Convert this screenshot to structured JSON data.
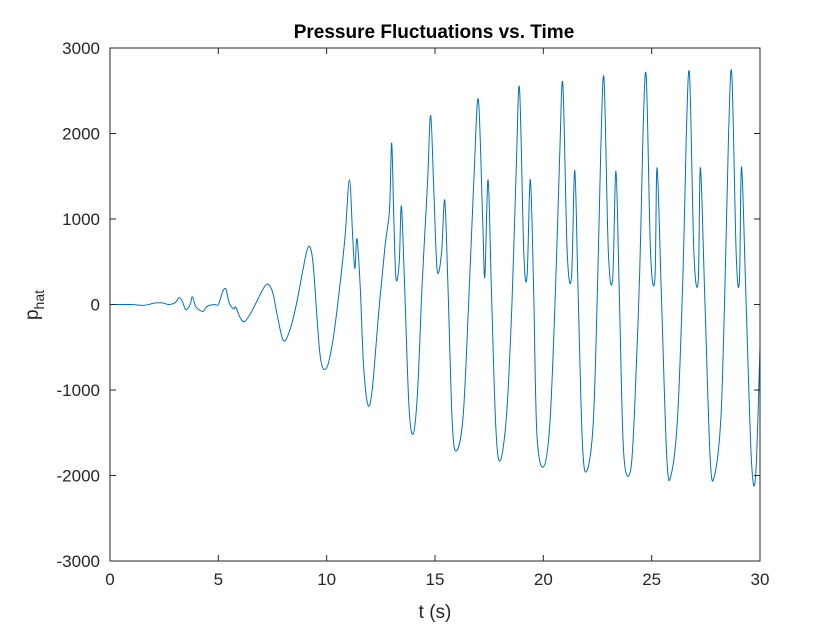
{
  "chart_data": {
    "type": "line",
    "title": "Pressure Fluctuations vs. Time",
    "xlabel": "t (s)",
    "ylabel_main": "p",
    "ylabel_sub": "hat",
    "xlim": [
      0,
      30
    ],
    "ylim": [
      -3000,
      3000
    ],
    "x_ticks": [
      0,
      5,
      10,
      15,
      20,
      25,
      30
    ],
    "x_tick_labels": [
      "0",
      "5",
      "10",
      "15",
      "20",
      "25",
      "30"
    ],
    "y_ticks": [
      -3000,
      -2000,
      -1000,
      0,
      1000,
      2000,
      3000
    ],
    "y_tick_labels": [
      "-3000",
      "-2000",
      "-1000",
      "0",
      "1000",
      "2000",
      "3000"
    ],
    "grid": false,
    "line_color": "#0072bd",
    "series": [
      {
        "x": [
          0,
          0.5,
          1.0,
          1.5,
          1.8,
          2.0,
          2.3,
          2.5,
          2.7,
          3.0,
          3.2,
          3.35,
          3.5,
          3.7,
          3.8,
          3.95,
          4.1,
          4.3,
          4.5,
          4.8,
          5.0,
          5.2,
          5.35,
          5.5,
          5.7,
          5.8,
          6.0,
          6.2,
          6.5,
          6.8,
          7.0,
          7.25,
          7.5,
          7.7,
          8.0,
          8.3,
          8.6,
          8.9,
          9.1,
          9.25,
          9.4,
          9.7,
          10.0,
          10.3,
          10.6,
          10.85,
          11.05,
          11.2,
          11.3,
          11.4,
          11.55,
          11.7,
          11.9,
          12.1,
          12.4,
          12.7,
          12.9,
          13.0,
          13.1,
          13.2,
          13.35,
          13.45,
          13.6,
          13.8,
          14.0,
          14.2,
          14.4,
          14.65,
          14.8,
          14.95,
          15.1,
          15.3,
          15.45,
          15.6,
          15.8,
          16.0,
          16.3,
          16.55,
          16.8,
          17.0,
          17.2,
          17.3,
          17.45,
          17.6,
          17.8,
          18.0,
          18.3,
          18.55,
          18.75,
          18.9,
          19.1,
          19.25,
          19.4,
          19.55,
          19.7,
          20.0,
          20.3,
          20.55,
          20.75,
          20.9,
          21.1,
          21.3,
          21.45,
          21.6,
          21.8,
          22.0,
          22.3,
          22.5,
          22.65,
          22.8,
          23.0,
          23.2,
          23.35,
          23.5,
          23.7,
          24.0,
          24.2,
          24.45,
          24.6,
          24.75,
          24.95,
          25.15,
          25.25,
          25.45,
          25.7,
          25.9,
          26.2,
          26.45,
          26.6,
          26.75,
          26.95,
          27.15,
          27.25,
          27.45,
          27.7,
          27.9,
          28.2,
          28.4,
          28.55,
          28.7,
          28.9,
          29.05,
          29.15,
          29.35,
          29.6,
          29.8,
          30.0
        ],
        "y": [
          0,
          0,
          0,
          -10,
          0,
          15,
          20,
          15,
          0,
          20,
          80,
          30,
          -60,
          0,
          90,
          -20,
          -60,
          -80,
          -20,
          0,
          0,
          150,
          180,
          20,
          -50,
          -30,
          -150,
          -200,
          -100,
          50,
          150,
          240,
          150,
          -100,
          -420,
          -300,
          0,
          400,
          640,
          660,
          400,
          -600,
          -740,
          -400,
          200,
          800,
          1460,
          800,
          420,
          770,
          200,
          -700,
          -1170,
          -1000,
          -100,
          700,
          1100,
          1890,
          1000,
          300,
          500,
          1150,
          200,
          -1200,
          -1510,
          -1000,
          200,
          1400,
          2210,
          1300,
          400,
          600,
          1220,
          200,
          -1400,
          -1710,
          -1300,
          0,
          1500,
          2400,
          1000,
          320,
          1460,
          200,
          -1400,
          -1830,
          -1300,
          0,
          1600,
          2530,
          600,
          340,
          1460,
          200,
          -1500,
          -1900,
          -1400,
          100,
          1700,
          2580,
          620,
          320,
          1570,
          200,
          -1600,
          -1950,
          -1400,
          200,
          1800,
          2640,
          620,
          300,
          1560,
          200,
          -1700,
          -1970,
          -1300,
          400,
          2000,
          2660,
          600,
          300,
          1600,
          100,
          -1800,
          -1990,
          -1300,
          400,
          2000,
          2680,
          600,
          280,
          1600,
          100,
          -1800,
          -2000,
          -1300,
          400,
          2000,
          2690,
          600,
          280,
          1610,
          100,
          -1800,
          -2000,
          -500
        ]
      }
    ]
  }
}
